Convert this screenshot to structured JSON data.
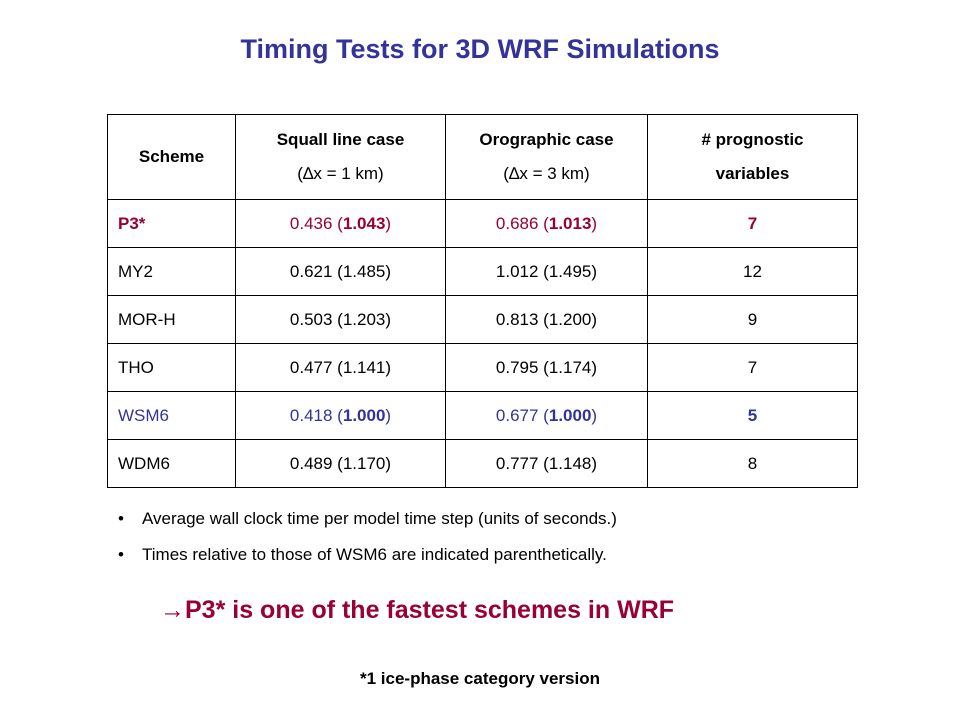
{
  "title": "Timing Tests for 3D WRF Simulations",
  "table": {
    "headers": {
      "scheme": "Scheme",
      "squall_line1": "Squall line case",
      "squall_line2": "(∆x = 1 km)",
      "orographic1": "Orographic case",
      "orographic2": "(∆x = 3 km)",
      "prognostic1": "# prognostic",
      "prognostic2": "variables"
    },
    "rows": [
      {
        "scheme": "P3*",
        "squall_abs": "0.436 (",
        "squall_rel": "1.043",
        "oro_abs": "0.686 (",
        "oro_rel": "1.013",
        "nvars": "7"
      },
      {
        "scheme": "MY2",
        "squall": "0.621 (1.485)",
        "oro": "1.012 (1.495)",
        "nvars": "12"
      },
      {
        "scheme": "MOR-H",
        "squall": "0.503 (1.203)",
        "oro": "0.813 (1.200)",
        "nvars": "9"
      },
      {
        "scheme": "THO",
        "squall": "0.477 (1.141)",
        "oro": "0.795 (1.174)",
        "nvars": "7"
      },
      {
        "scheme": "WSM6",
        "squall_abs": "0.418 (",
        "squall_rel": "1.000",
        "oro_abs": "0.677 (",
        "oro_rel": "1.000",
        "nvars": "5"
      },
      {
        "scheme": "WDM6",
        "squall": "0.489 (1.170)",
        "oro": "0.777 (1.148)",
        "nvars": "8"
      }
    ],
    "close_paren": ")"
  },
  "bullets": [
    "Average wall clock time per model time step (units of seconds.)",
    "Times relative to those of WSM6 are indicated parenthetically."
  ],
  "bullet_glyph": "•",
  "conclusion": {
    "arrow": "→",
    "text": "P3* is one of the fastest schemes in WRF"
  },
  "footnote": "*1 ice-phase category version",
  "colors": {
    "title": "#333399",
    "p3_highlight": "#990033",
    "wsm6_highlight": "#333399",
    "conclusion": "#990033"
  }
}
